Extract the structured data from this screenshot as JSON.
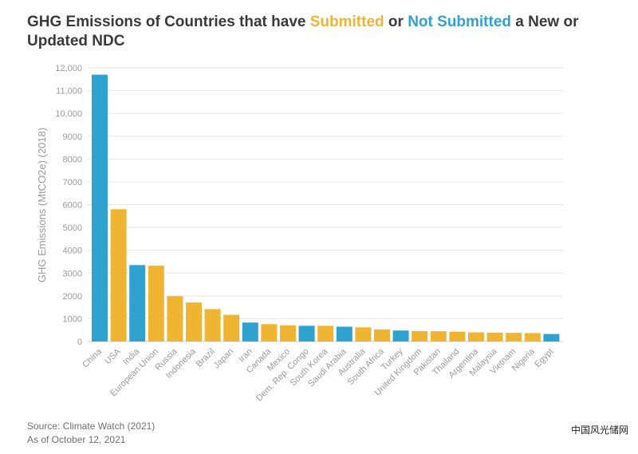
{
  "title": {
    "part1": "GHG Emissions of Countries that have ",
    "submitted": "Submitted",
    "part2": " or ",
    "not_submitted": "Not Submitted",
    "part3": " a New or Updated NDC"
  },
  "source": {
    "line1": "Source: Climate Watch (2021)",
    "line2": "As of October 12, 2021"
  },
  "watermark": "中国风光储网",
  "colors": {
    "submitted": "#f0b433",
    "not_submitted": "#2fa2d0",
    "title": "#3a3a3a",
    "grid": "#e6e6e6",
    "axis_text": "#9a9a9a"
  },
  "chart_data": {
    "type": "bar",
    "title": "GHG Emissions of Countries that have Submitted or Not Submitted a New or Updated NDC",
    "ylabel": "GHG Emissions (MtCO2e) (2018)",
    "xlabel": "",
    "ylim": [
      0,
      12000
    ],
    "yticks": [
      0,
      1000,
      2000,
      3000,
      4000,
      5000,
      6000,
      7000,
      8000,
      9000,
      10000,
      11000,
      12000
    ],
    "ytick_labels": [
      "0",
      "1000",
      "2000",
      "3000",
      "4000",
      "5000",
      "6000",
      "7000",
      "8000",
      "9000",
      "10,000",
      "11,000",
      "12,000"
    ],
    "grid": true,
    "categories": [
      "China",
      "USA",
      "India",
      "European Union",
      "Russia",
      "Indonesia",
      "Brazil",
      "Japan",
      "Iran",
      "Canada",
      "Mexico",
      "Dem. Rep. Congo",
      "South Korea",
      "Saudi Arabia",
      "Australia",
      "South Africa",
      "Turkey",
      "United Kingdom",
      "Pakistan",
      "Thailand",
      "Argentina",
      "Malaysia",
      "Vietnam",
      "Nigeria",
      "Egypt"
    ],
    "values": [
      11700,
      5800,
      3350,
      3330,
      1990,
      1710,
      1420,
      1170,
      830,
      760,
      710,
      690,
      690,
      650,
      620,
      530,
      480,
      460,
      450,
      430,
      400,
      390,
      380,
      370,
      330
    ],
    "status": [
      "not_submitted",
      "submitted",
      "not_submitted",
      "submitted",
      "submitted",
      "submitted",
      "submitted",
      "submitted",
      "not_submitted",
      "submitted",
      "submitted",
      "not_submitted",
      "submitted",
      "not_submitted",
      "submitted",
      "submitted",
      "not_submitted",
      "submitted",
      "submitted",
      "submitted",
      "submitted",
      "submitted",
      "submitted",
      "submitted",
      "not_submitted"
    ]
  }
}
